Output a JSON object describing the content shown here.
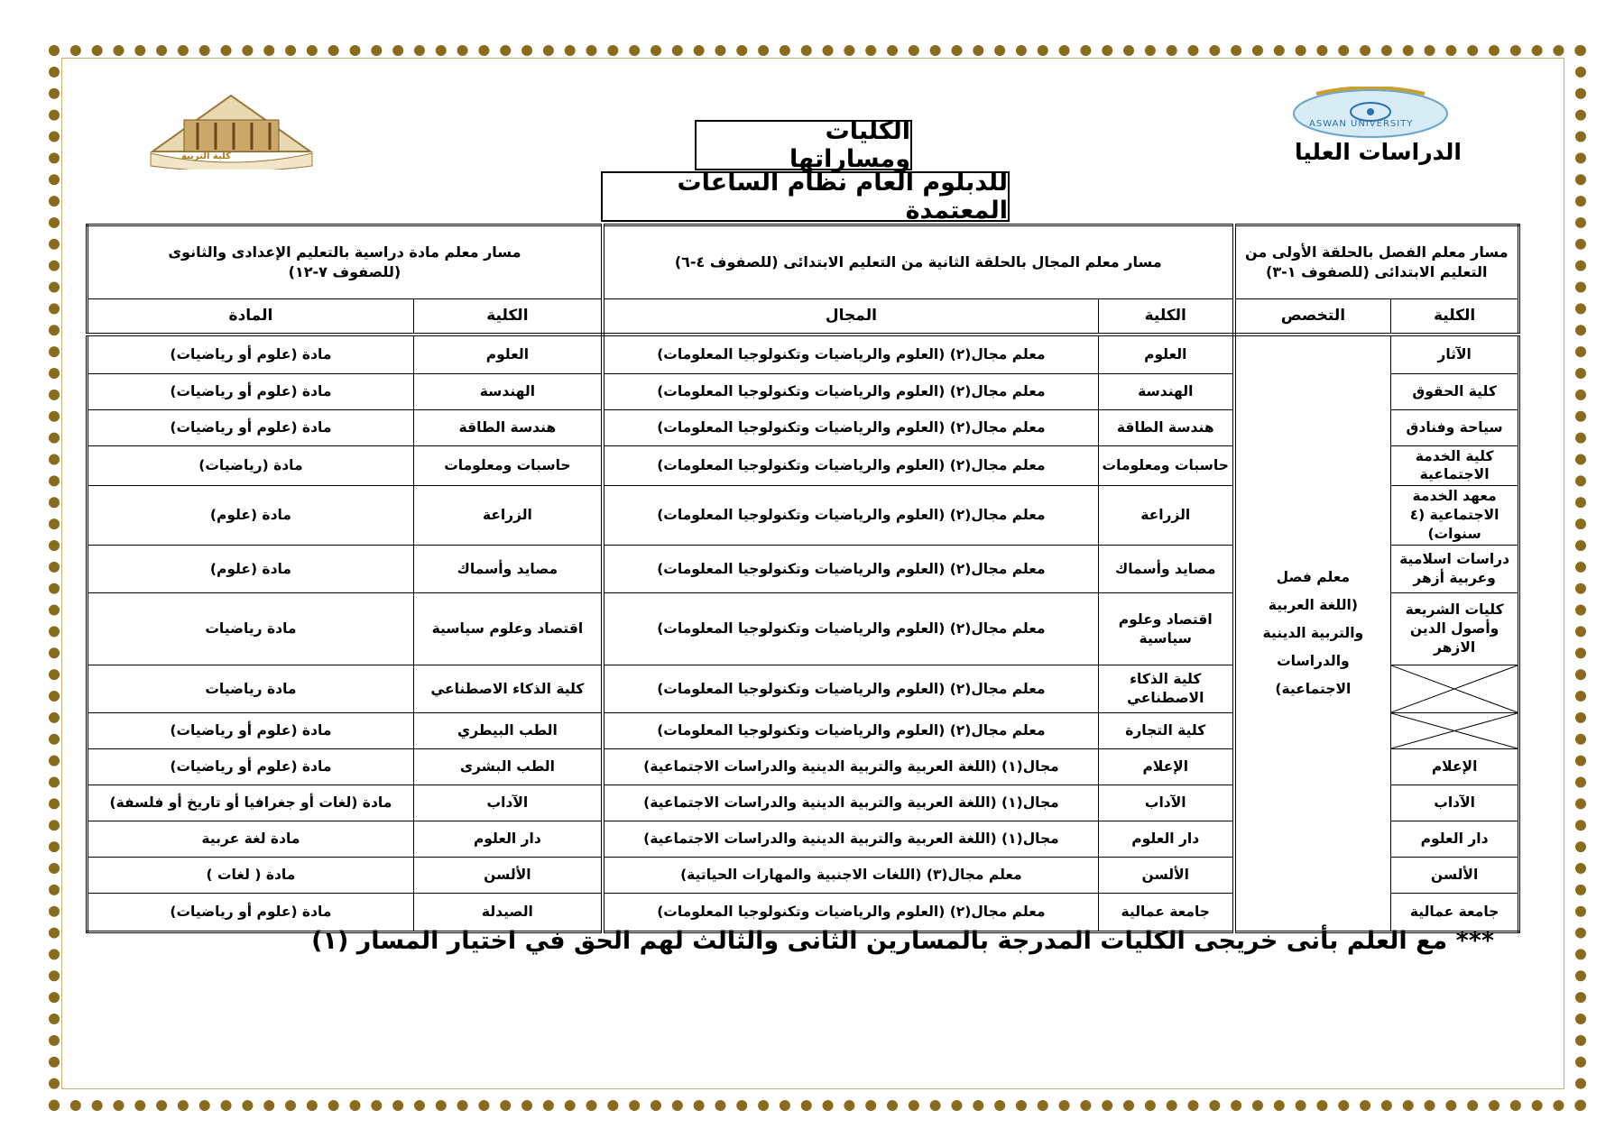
{
  "header": {
    "right_logo_text": "الدراسات العليا",
    "right_logo_caption": "ASWAN UNIVERSITY",
    "left_logo_caption": "كلية التربية",
    "title": "الكليات ومساراتها",
    "subtitle": "للدبلوم العام نظام الساعات المعتمدة"
  },
  "table": {
    "sections": [
      {
        "title_lines": [
          "مسار معلم الفصل بالحلقة الأولى من",
          "التعليم الابتدائى (للصفوف ١-٣)"
        ],
        "columns": [
          "الكلية",
          "التخصص"
        ]
      },
      {
        "title_lines": [
          "مسار معلم المجال بالحلقة الثانية من التعليم الابتدائى (للصفوف ٤-٦)"
        ],
        "columns": [
          "الكلية",
          "المجال"
        ]
      },
      {
        "title_lines": [
          "مسار معلم مادة دراسية بالتعليم الإعدادى والثانوى",
          "(للصفوف ٧-١٢)"
        ],
        "columns": [
          "الكلية",
          "المادة"
        ]
      }
    ],
    "specialization_lines": [
      "معلم فصل",
      "(اللغة العربية",
      "والتربية الدينية",
      "والدراسات",
      "الاجتماعية)"
    ],
    "rows": [
      [
        "الآثار",
        "العلوم",
        "معلم مجال(٢) (العلوم والرياضيات وتكنولوجيا المعلومات)",
        "العلوم",
        "مادة (علوم أو رياضيات)"
      ],
      [
        "كلية الحقوق",
        "الهندسة",
        "معلم مجال(٢) (العلوم والرياضيات وتكنولوجيا المعلومات)",
        "الهندسة",
        "مادة (علوم أو رياضيات)"
      ],
      [
        "سياحة وفنادق",
        "هندسة الطاقة",
        "معلم مجال(٢) (العلوم والرياضيات وتكنولوجيا المعلومات)",
        "هندسة الطاقة",
        "مادة (علوم أو رياضيات)"
      ],
      [
        "كلية الخدمة الاجتماعية",
        "حاسبات ومعلومات",
        "معلم مجال(٢) (العلوم والرياضيات وتكنولوجيا المعلومات)",
        "حاسبات ومعلومات",
        "مادة (رياضيات)"
      ],
      [
        "معهد الخدمة الاجتماعية (٤ سنوات)",
        "الزراعة",
        "معلم مجال(٢) (العلوم والرياضيات وتكنولوجيا المعلومات)",
        "الزراعة",
        "مادة (علوم)"
      ],
      [
        "دراسات اسلامية وعربية أزهر",
        "مصايد وأسماك",
        "معلم مجال(٢) (العلوم والرياضيات وتكنولوجيا المعلومات)",
        "مصايد وأسماك",
        "مادة (علوم)"
      ],
      [
        "كليات الشريعة وأصول الدين الازهر",
        "اقتصاد وعلوم سياسية",
        "معلم مجال(٢) (العلوم والرياضيات وتكنولوجيا المعلومات)",
        "اقتصاد وعلوم سياسية",
        "مادة رياضيات"
      ],
      [
        null,
        "كلية الذكاء الاصطناعي",
        "معلم مجال(٢) (العلوم والرياضيات وتكنولوجيا المعلومات)",
        "كلية الذكاء الاصطناعي",
        "مادة رياضيات"
      ],
      [
        null,
        "كلية التجارة",
        "معلم مجال(٢) (العلوم والرياضيات وتكنولوجيا المعلومات)",
        "الطب البيطري",
        "مادة (علوم أو رياضيات)"
      ],
      [
        "الإعلام",
        "الإعلام",
        "مجال(١) (اللغة العربية والتربية الدينية والدراسات الاجتماعية)",
        "الطب البشرى",
        "مادة (علوم أو رياضيات)"
      ],
      [
        "الآداب",
        "الآداب",
        "مجال(١) (اللغة العربية والتربية الدينية والدراسات الاجتماعية)",
        "الآداب",
        "مادة (لغات أو جغرافيا أو تاريخ أو فلسفة)"
      ],
      [
        "دار العلوم",
        "دار العلوم",
        "مجال(١) (اللغة العربية والتربية الدينية والدراسات الاجتماعية)",
        "دار العلوم",
        "مادة لغة عربية"
      ],
      [
        "الألسن",
        "الألسن",
        "معلم مجال(٣) (اللغات الاجنبية والمهارات الحياتية)",
        "الألسن",
        "مادة ( لغات )"
      ],
      [
        "جامعة عمالية",
        "جامعة عمالية",
        "معلم مجال(٢) (العلوم والرياضيات وتكنولوجيا المعلومات)",
        "الصيدلة",
        "مادة (علوم أو رياضيات)"
      ]
    ]
  },
  "footnote": "*** مع العلم بأنى خريجى الكليات المدرجة بالمسارين الثانى والثالث لهم الحق في اختيار المسار (١)"
}
